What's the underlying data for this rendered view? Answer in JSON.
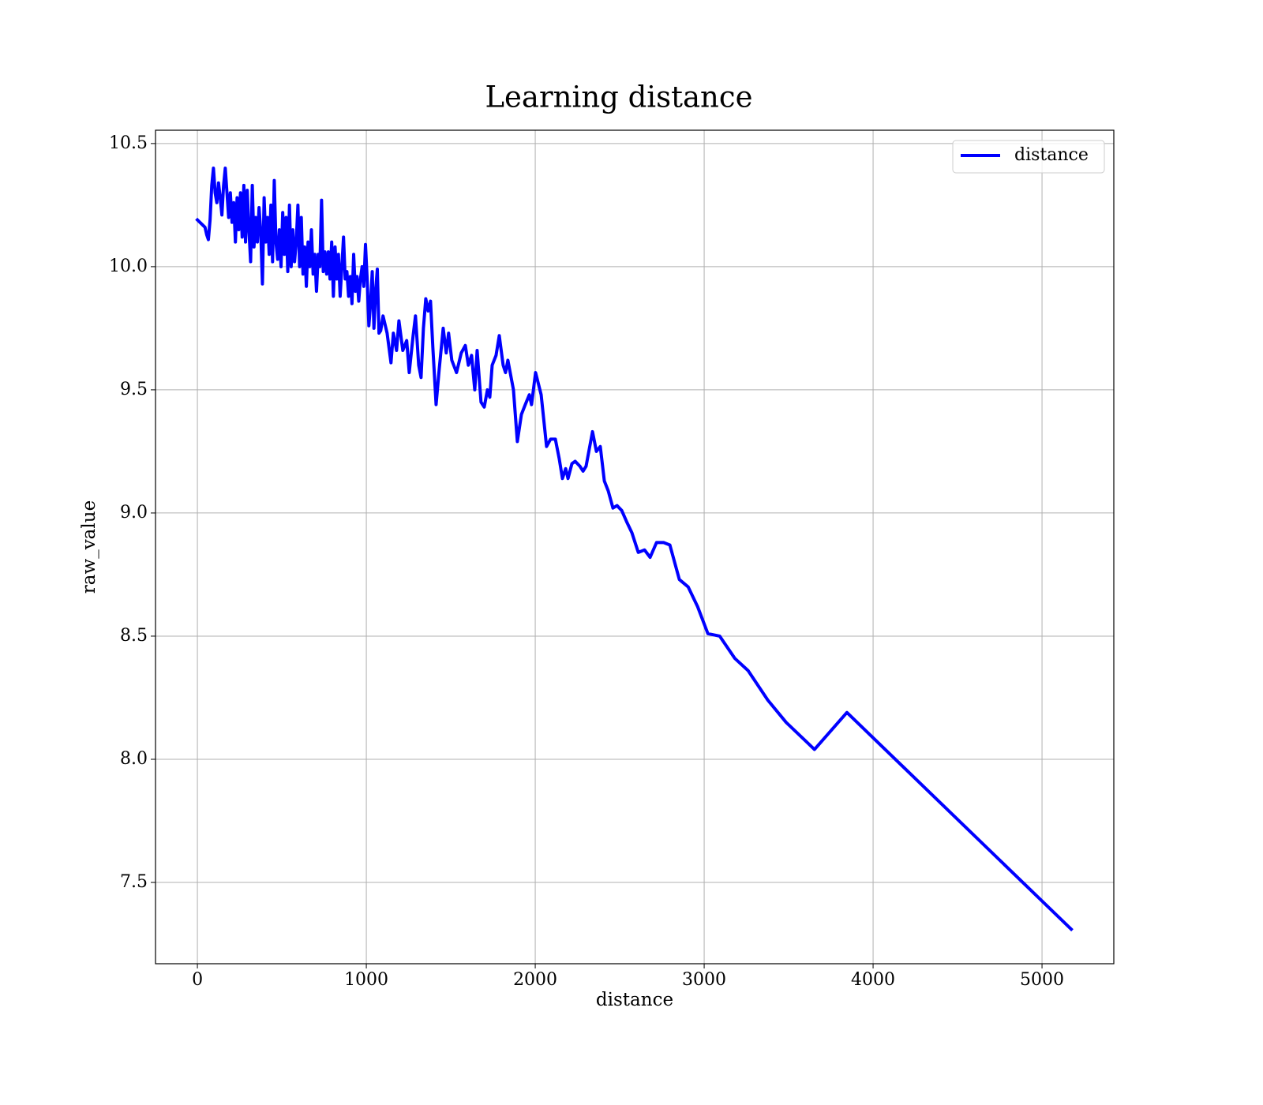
{
  "chart_data": {
    "type": "line",
    "title": "Learning distance",
    "xlabel": "distance",
    "ylabel": "raw_value",
    "xlim": [
      -248,
      5425
    ],
    "ylim": [
      7.17,
      10.554
    ],
    "xticks": [
      0,
      1000,
      2000,
      3000,
      4000,
      5000
    ],
    "yticks": [
      7.5,
      {
        "value": 8,
        "label": "8.0"
      },
      8.5,
      {
        "value": 9,
        "label": "9.0"
      },
      9.5,
      {
        "value": 10,
        "label": "10.0"
      },
      10.5
    ],
    "grid": true,
    "legend": "upper right",
    "x": [
      0,
      30,
      45,
      55,
      65,
      75,
      85,
      95,
      105,
      115,
      125,
      135,
      145,
      155,
      165,
      175,
      185,
      195,
      205,
      215,
      225,
      235,
      245,
      255,
      265,
      275,
      285,
      295,
      305,
      315,
      325,
      335,
      345,
      355,
      365,
      375,
      385,
      395,
      405,
      415,
      425,
      435,
      445,
      455,
      465,
      475,
      485,
      495,
      505,
      515,
      525,
      535,
      545,
      555,
      565,
      575,
      585,
      595,
      605,
      615,
      625,
      635,
      645,
      655,
      665,
      675,
      685,
      695,
      705,
      715,
      725,
      735,
      745,
      755,
      765,
      775,
      785,
      795,
      805,
      815,
      825,
      835,
      845,
      855,
      865,
      875,
      885,
      895,
      905,
      915,
      925,
      935,
      945,
      955,
      965,
      975,
      985,
      995,
      1005,
      1015,
      1025,
      1035,
      1045,
      1055,
      1065,
      1075,
      1085,
      1099,
      1123,
      1146,
      1160,
      1179,
      1193,
      1216,
      1239,
      1254,
      1277,
      1291,
      1310,
      1324,
      1338,
      1352,
      1366,
      1380,
      1394,
      1413,
      1431,
      1455,
      1473,
      1487,
      1506,
      1534,
      1562,
      1586,
      1604,
      1623,
      1642,
      1656,
      1679,
      1698,
      1717,
      1731,
      1745,
      1768,
      1787,
      1810,
      1824,
      1838,
      1871,
      1894,
      1918,
      1941,
      1965,
      1978,
      2002,
      2035,
      2067,
      2091,
      2119,
      2142,
      2161,
      2180,
      2194,
      2217,
      2236,
      2264,
      2283,
      2301,
      2320,
      2339,
      2362,
      2385,
      2409,
      2432,
      2460,
      2484,
      2512,
      2544,
      2572,
      2610,
      2647,
      2680,
      2718,
      2760,
      2797,
      2853,
      2905,
      2961,
      3022,
      3092,
      3181,
      3260,
      3377,
      3485,
      3653,
      3845,
      5173
    ],
    "series": [
      {
        "name": "distance",
        "color": "#0000ff",
        "values": [
          10.19,
          10.17,
          10.16,
          10.13,
          10.11,
          10.19,
          10.33,
          10.4,
          10.3,
          10.26,
          10.34,
          10.28,
          10.21,
          10.33,
          10.4,
          10.3,
          10.2,
          10.3,
          10.18,
          10.26,
          10.1,
          10.28,
          10.15,
          10.3,
          10.12,
          10.33,
          10.1,
          10.31,
          10.15,
          10.02,
          10.33,
          10.08,
          10.2,
          10.1,
          10.24,
          10.14,
          9.93,
          10.28,
          10.1,
          10.2,
          10.05,
          10.25,
          10.02,
          10.35,
          10.1,
          10.03,
          10.15,
          10.0,
          10.22,
          10.05,
          10.2,
          9.98,
          10.25,
          10.0,
          10.15,
          10.02,
          10.1,
          10.25,
          10.0,
          10.2,
          9.97,
          10.08,
          9.92,
          10.1,
          10.0,
          10.15,
          9.97,
          10.05,
          9.9,
          10.05,
          10.0,
          10.27,
          9.98,
          10.06,
          9.97,
          10.06,
          9.95,
          10.1,
          9.88,
          10.08,
          9.95,
          10.05,
          9.88,
          10.0,
          10.12,
          9.95,
          9.98,
          9.88,
          9.96,
          9.85,
          10.05,
          9.9,
          9.96,
          9.86,
          9.95,
          10.0,
          9.92,
          10.09,
          9.95,
          9.76,
          9.85,
          9.98,
          9.75,
          9.9,
          9.99,
          9.73,
          9.74,
          9.8,
          9.73,
          9.61,
          9.73,
          9.66,
          9.78,
          9.66,
          9.7,
          9.57,
          9.72,
          9.8,
          9.6,
          9.55,
          9.75,
          9.87,
          9.82,
          9.86,
          9.67,
          9.44,
          9.58,
          9.75,
          9.65,
          9.73,
          9.62,
          9.57,
          9.65,
          9.68,
          9.6,
          9.64,
          9.5,
          9.66,
          9.45,
          9.43,
          9.5,
          9.47,
          9.6,
          9.64,
          9.72,
          9.6,
          9.57,
          9.62,
          9.5,
          9.29,
          9.4,
          9.44,
          9.48,
          9.44,
          9.57,
          9.48,
          9.27,
          9.3,
          9.3,
          9.22,
          9.14,
          9.18,
          9.14,
          9.2,
          9.21,
          9.19,
          9.17,
          9.19,
          9.26,
          9.33,
          9.25,
          9.27,
          9.13,
          9.09,
          9.02,
          9.03,
          9.01,
          8.96,
          8.92,
          8.84,
          8.85,
          8.82,
          8.88,
          8.88,
          8.87,
          8.73,
          8.7,
          8.62,
          8.51,
          8.5,
          8.41,
          8.36,
          8.24,
          8.15,
          8.04,
          8.19,
          7.31
        ]
      }
    ]
  }
}
